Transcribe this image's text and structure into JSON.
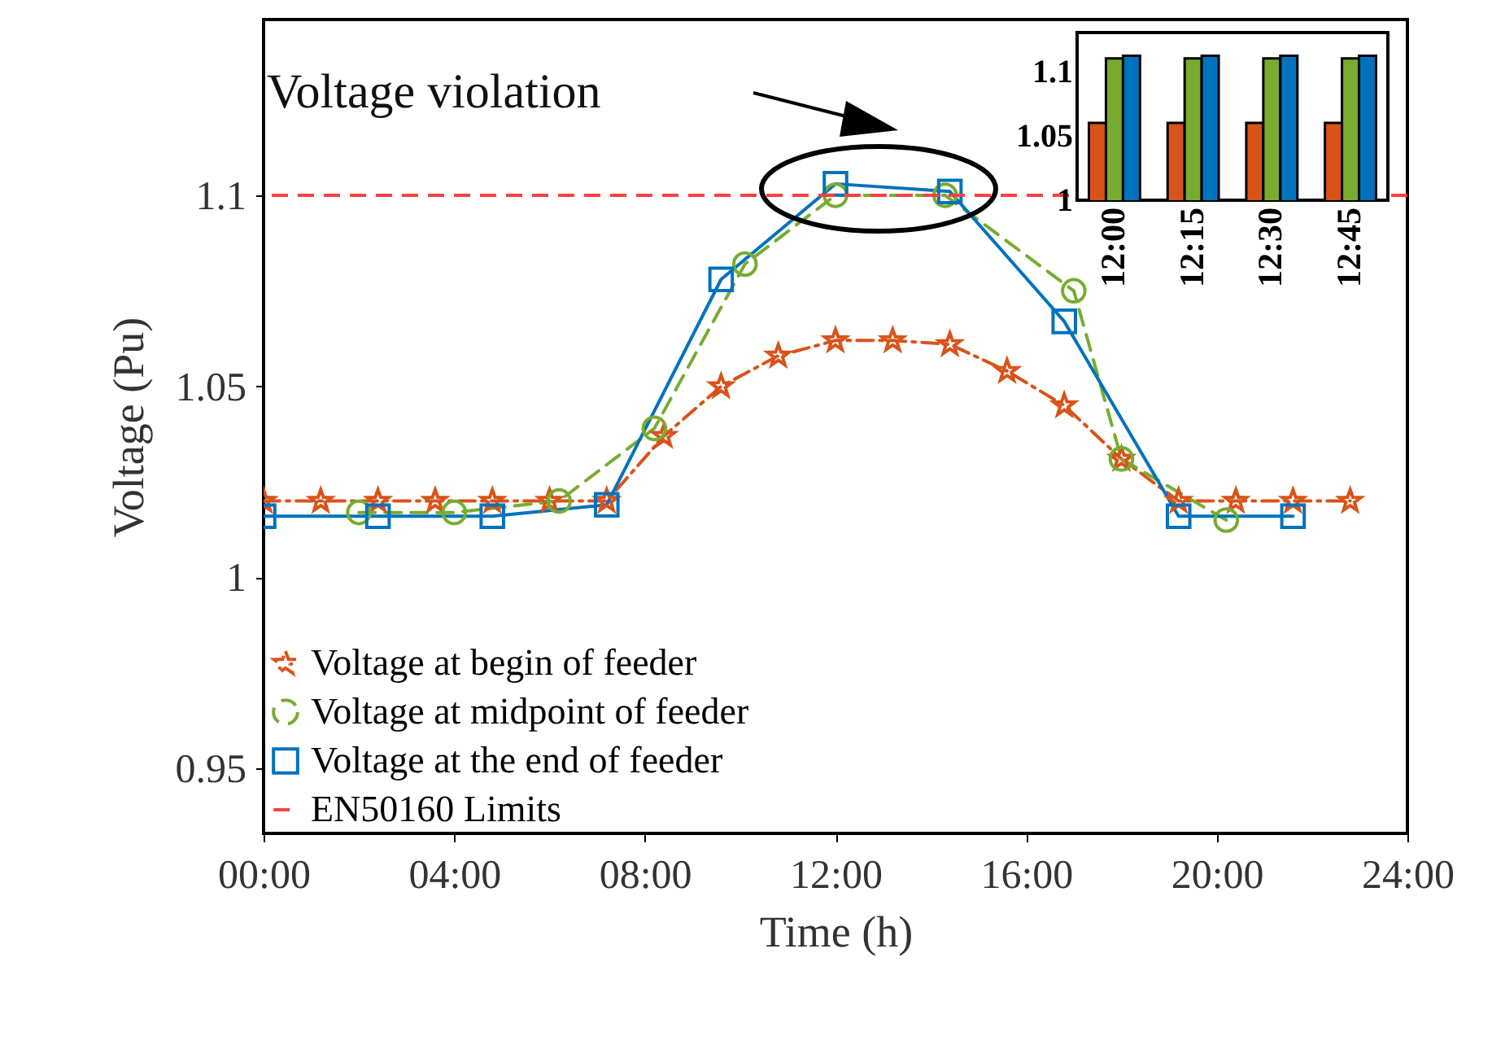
{
  "chart_data": [
    {
      "type": "line",
      "xlabel": "Time (h)",
      "ylabel": "Voltage (Pu)",
      "xlim": [
        0,
        24
      ],
      "xticks": [
        {
          "value": 0,
          "label": "00:00"
        },
        {
          "value": 4,
          "label": "04:00"
        },
        {
          "value": 8,
          "label": "08:00"
        },
        {
          "value": 12,
          "label": "12:00"
        },
        {
          "value": 16,
          "label": "16:00"
        },
        {
          "value": 20,
          "label": "20:00"
        },
        {
          "value": 24,
          "label": "24:00"
        }
      ],
      "ylim": [
        0.933,
        1.146
      ],
      "yticks": [
        0.95,
        1,
        1.05,
        1.1
      ],
      "legend": "bottom left",
      "annotations": [
        "Voltage violation"
      ],
      "series": [
        {
          "name": "Voltage at begin of feeder",
          "color": "#d95319",
          "marker": "star",
          "line_style": "dashdot",
          "x": [
            0,
            1.2,
            2.4,
            3.6,
            4.8,
            6,
            7.2,
            8.4,
            9.6,
            10.8,
            12,
            13.2,
            14.4,
            15.6,
            16.8,
            18,
            19.2,
            20.4,
            21.6,
            22.8
          ],
          "values": [
            1.02,
            1.02,
            1.02,
            1.02,
            1.02,
            1.02,
            1.02,
            1.037,
            1.05,
            1.058,
            1.062,
            1.062,
            1.061,
            1.054,
            1.045,
            1.031,
            1.02,
            1.02,
            1.02,
            1.02
          ]
        },
        {
          "name": "Voltage at midpoint of feeder",
          "color": "#77ac30",
          "marker": "circle",
          "line_style": "dashed",
          "x": [
            2,
            4,
            6.2,
            8.2,
            10.1,
            12,
            14.3,
            17,
            18,
            20.2
          ],
          "values": [
            1.017,
            1.017,
            1.02,
            1.039,
            1.082,
            1.1,
            1.1,
            1.075,
            1.031,
            1.015
          ]
        },
        {
          "name": "Voltage at the end of feeder",
          "color": "#0072bd",
          "marker": "square",
          "line_style": "solid",
          "x": [
            0,
            2.4,
            4.8,
            7.2,
            9.6,
            12,
            14.4,
            16.8,
            19.2,
            21.6
          ],
          "values": [
            1.016,
            1.016,
            1.016,
            1.019,
            1.078,
            1.103,
            1.101,
            1.067,
            1.016,
            1.016
          ]
        }
      ],
      "ref_lines": [
        {
          "axis": "y",
          "value": 1.1,
          "label": "EN50160 Limits",
          "color": "#ff4040",
          "line_style": "dashed"
        }
      ]
    },
    {
      "type": "bar",
      "categories": [
        "12:00",
        "12:15",
        "12:30",
        "12:45"
      ],
      "ylim": [
        1,
        1.13
      ],
      "yticks": [
        1,
        1.05,
        1.1
      ],
      "series": [
        {
          "color": "#d95319",
          "values": [
            1.06,
            1.06,
            1.06,
            1.06
          ]
        },
        {
          "color": "#77ac30",
          "values": [
            1.11,
            1.11,
            1.11,
            1.11
          ]
        },
        {
          "color": "#0072bd",
          "values": [
            1.112,
            1.112,
            1.112,
            1.112
          ]
        }
      ]
    }
  ]
}
